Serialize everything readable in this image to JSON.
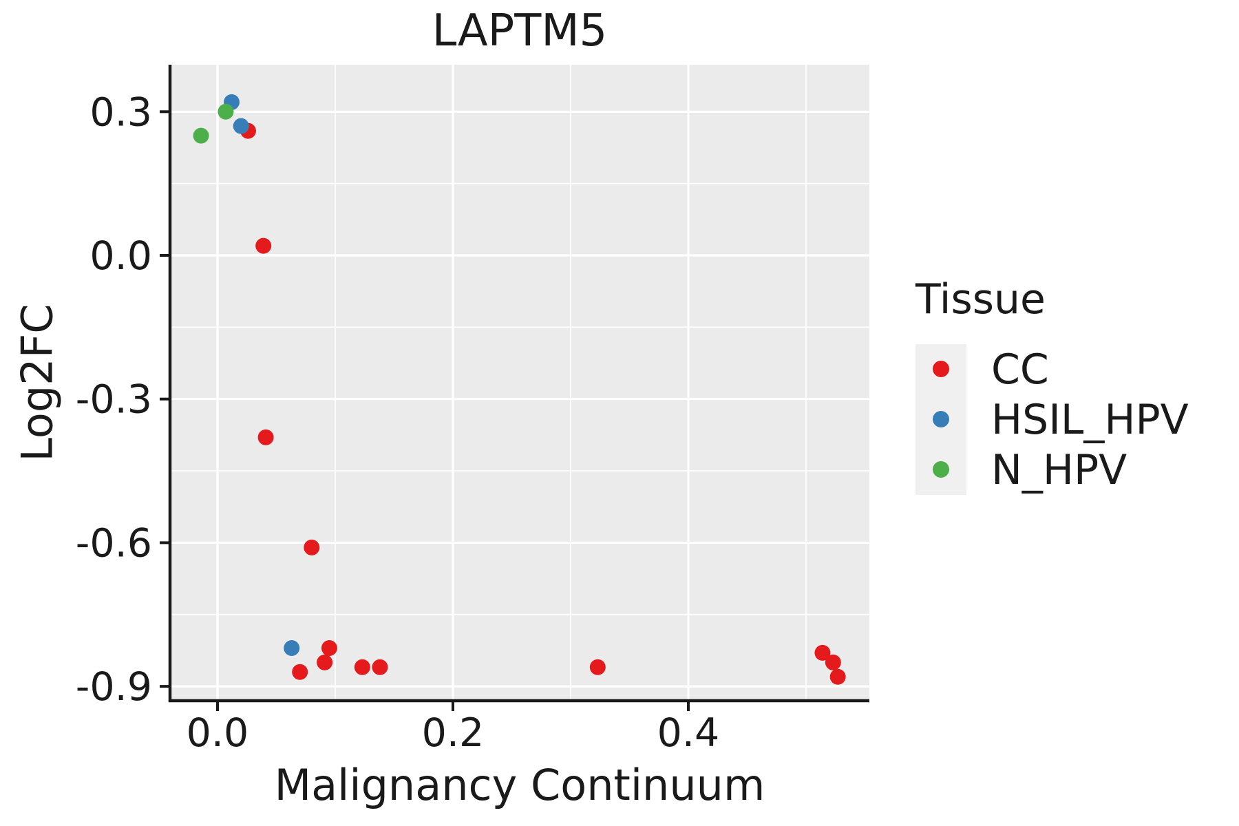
{
  "title": "LAPTM5",
  "legend": {
    "title": "Tissue",
    "items": [
      {
        "label": "CC",
        "color": "#E41A1C"
      },
      {
        "label": "HSIL_HPV",
        "color": "#377EB8"
      },
      {
        "label": "N_HPV",
        "color": "#4DAF4A"
      }
    ]
  },
  "colors": {
    "panel_bg": "#EBEBEB",
    "grid": "#FFFFFF",
    "axis": "#1A1A1A",
    "text": "#1A1A1A",
    "legend_key_bg": "#F0F0F0",
    "cc": "#E41A1C",
    "hsil_hpv": "#377EB8",
    "n_hpv": "#4DAF4A"
  },
  "chart_data": {
    "type": "scatter",
    "title": "LAPTM5",
    "xlabel": "Malignancy Continuum",
    "ylabel": "Log2FC",
    "xlim": [
      -0.04,
      0.554
    ],
    "ylim": [
      -0.932,
      0.397
    ],
    "grid": "on",
    "legend_position": "right",
    "axis": {
      "x_major": [
        0.0,
        0.2,
        0.4
      ],
      "x_tick_labels": [
        "0.0",
        "0.2",
        "0.4"
      ],
      "x_minor": [
        0.1,
        0.3,
        0.5
      ],
      "y_major": [
        0.3,
        0.0,
        -0.3,
        -0.6,
        -0.9
      ],
      "y_tick_labels": [
        "0.3",
        "0.0",
        "-0.3",
        "-0.6",
        "-0.9"
      ],
      "y_minor": [
        0.15,
        -0.15,
        -0.45,
        -0.75
      ]
    },
    "series": [
      {
        "name": "CC",
        "color": "#E41A1C",
        "points": [
          [
            0.026,
            0.26
          ],
          [
            0.039,
            0.02
          ],
          [
            0.041,
            -0.38
          ],
          [
            0.08,
            -0.61
          ],
          [
            0.095,
            -0.82
          ],
          [
            0.091,
            -0.85
          ],
          [
            0.07,
            -0.87
          ],
          [
            0.123,
            -0.86
          ],
          [
            0.138,
            -0.86
          ],
          [
            0.323,
            -0.86
          ],
          [
            0.514,
            -0.83
          ],
          [
            0.523,
            -0.85
          ],
          [
            0.527,
            -0.88
          ]
        ]
      },
      {
        "name": "HSIL_HPV",
        "color": "#377EB8",
        "points": [
          [
            0.012,
            0.32
          ],
          [
            0.02,
            0.27
          ],
          [
            0.063,
            -0.82
          ]
        ]
      },
      {
        "name": "N_HPV",
        "color": "#4DAF4A",
        "points": [
          [
            0.007,
            0.3
          ],
          [
            -0.014,
            0.25
          ]
        ]
      }
    ]
  }
}
